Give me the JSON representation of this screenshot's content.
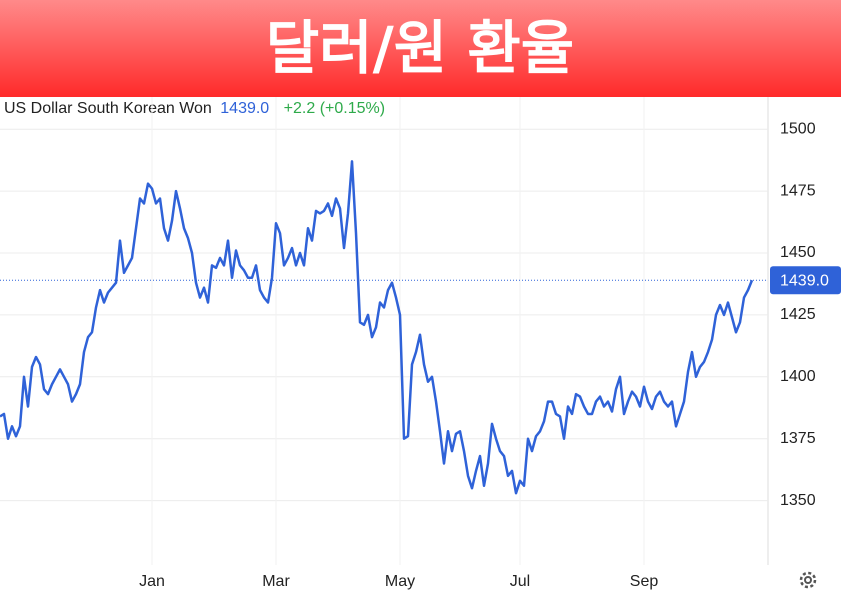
{
  "chart_data": {
    "type": "line",
    "title": "달러/원 환율",
    "series": [
      {
        "name": "US Dollar South Korean Won",
        "color": "#2f62d8",
        "values": [
          1384,
          1385,
          1375,
          1380,
          1376,
          1380,
          1400,
          1388,
          1404,
          1408,
          1405,
          1395,
          1393,
          1397,
          1400,
          1403,
          1400,
          1397,
          1390,
          1393,
          1397,
          1410,
          1416,
          1418,
          1428,
          1435,
          1430,
          1434,
          1436,
          1438,
          1455,
          1442,
          1445,
          1448,
          1460,
          1472,
          1470,
          1478,
          1476,
          1470,
          1472,
          1460,
          1455,
          1463,
          1475,
          1468,
          1460,
          1456,
          1450,
          1438,
          1432,
          1436,
          1430,
          1445,
          1444,
          1448,
          1445,
          1455,
          1440,
          1451,
          1445,
          1443,
          1440,
          1440,
          1445,
          1435,
          1432,
          1430,
          1440,
          1462,
          1458,
          1445,
          1448,
          1452,
          1445,
          1450,
          1445,
          1460,
          1455,
          1467,
          1466,
          1467,
          1470,
          1465,
          1472,
          1468,
          1452,
          1466,
          1487,
          1458,
          1422,
          1421,
          1425,
          1416,
          1420,
          1430,
          1428,
          1435,
          1438,
          1432,
          1425,
          1375,
          1376,
          1405,
          1410,
          1417,
          1405,
          1398,
          1400,
          1390,
          1378,
          1365,
          1378,
          1370,
          1377,
          1378,
          1370,
          1360,
          1355,
          1362,
          1368,
          1356,
          1365,
          1381,
          1375,
          1370,
          1368,
          1360,
          1362,
          1353,
          1358,
          1356,
          1375,
          1370,
          1376,
          1378,
          1382,
          1390,
          1390,
          1385,
          1384,
          1375,
          1388,
          1385,
          1393,
          1392,
          1388,
          1385,
          1385,
          1390,
          1392,
          1388,
          1390,
          1386,
          1395,
          1400,
          1385,
          1390,
          1394,
          1392,
          1388,
          1396,
          1390,
          1387,
          1392,
          1394,
          1390,
          1388,
          1390,
          1380,
          1385,
          1390,
          1402,
          1410,
          1400,
          1404,
          1406,
          1410,
          1415,
          1425,
          1429,
          1425,
          1430,
          1424,
          1418,
          1422,
          1432,
          1435,
          1439
        ]
      }
    ],
    "categories": [
      null,
      null,
      null,
      null,
      null,
      null,
      null,
      null,
      null,
      null,
      null,
      null,
      null,
      null,
      null,
      null,
      null,
      null,
      null,
      null,
      null,
      null,
      null,
      null,
      null,
      null,
      null,
      null,
      null,
      null,
      null,
      null,
      null,
      null,
      null,
      null,
      null,
      null,
      "Jan",
      null,
      null,
      null,
      null,
      null,
      null,
      null,
      null,
      null,
      null,
      null,
      null,
      null,
      null,
      null,
      null,
      null,
      null,
      null,
      null,
      null,
      null,
      null,
      null,
      null,
      null,
      null,
      null,
      null,
      null,
      "Mar",
      null,
      null,
      null,
      null,
      null,
      null,
      null,
      null,
      null,
      null,
      null,
      null,
      null,
      null,
      null,
      null,
      null,
      null,
      null,
      null,
      null,
      null,
      null,
      null,
      null,
      null,
      null,
      null,
      null,
      null,
      "May",
      null,
      null,
      null,
      null,
      null,
      null,
      null,
      null,
      null,
      null,
      null,
      null,
      null,
      null,
      null,
      null,
      null,
      null,
      null,
      null,
      null,
      null,
      null,
      null,
      null,
      null,
      null,
      null,
      null,
      "Jul",
      null,
      null,
      null,
      null,
      null,
      null,
      null,
      null,
      null,
      null,
      null,
      null,
      null,
      null,
      null,
      null,
      null,
      null,
      null,
      null,
      null,
      null,
      null,
      null,
      null,
      null,
      null,
      null,
      null,
      null,
      "Sep",
      null,
      null,
      null,
      null,
      null,
      null,
      null,
      null,
      null,
      null,
      null,
      null,
      null,
      null,
      null,
      null,
      null,
      null,
      null,
      null,
      null,
      null,
      null,
      null,
      null,
      null,
      null
    ],
    "last_label": "1439.0",
    "change": "+2.2 (+0.15%)",
    "ylim": [
      1324,
      1513
    ],
    "yticks": [
      1350,
      1375,
      1400,
      1425,
      1450,
      1475,
      1500
    ],
    "grid": true
  }
}
